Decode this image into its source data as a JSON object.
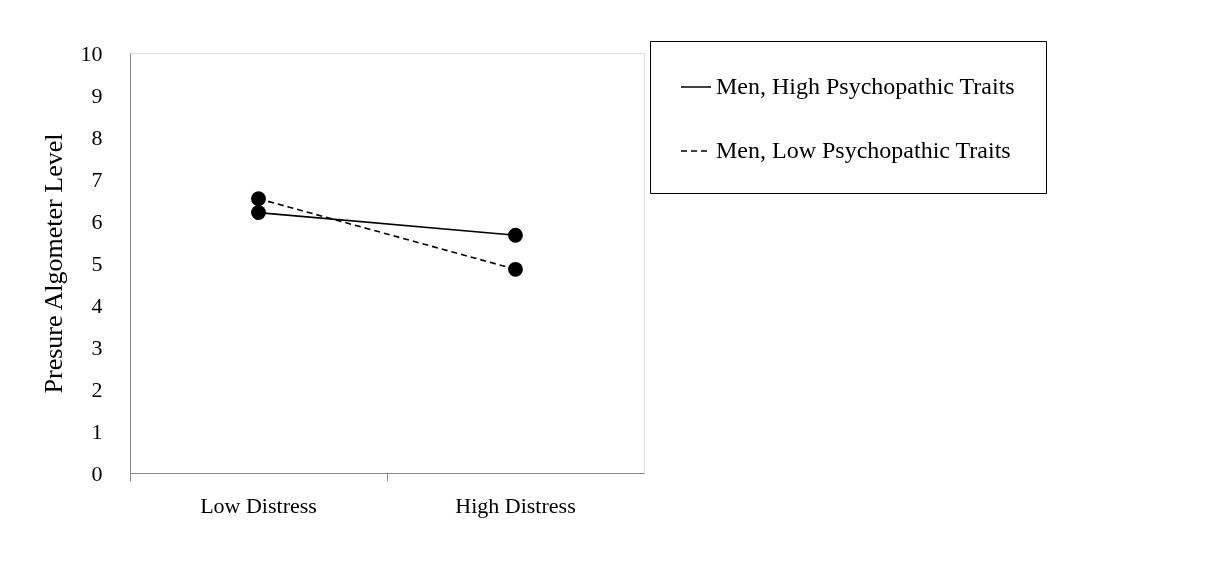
{
  "chart_data": {
    "type": "line",
    "ylabel": "Presure Algometer Level",
    "categories": [
      "Low Distress",
      "High Distress"
    ],
    "series": [
      {
        "name": "Men, High Psychopathic Traits",
        "color": "#000000",
        "values": [
          6.2,
          5.66
        ],
        "line_style": "solid"
      },
      {
        "name": "Men, Low Psychopathic Traits",
        "color": "#000000",
        "values": [
          6.53,
          4.85
        ],
        "line_style": "dashed"
      }
    ],
    "ylim": [
      0,
      10
    ],
    "yticks": [
      0,
      1,
      2,
      3,
      4,
      5,
      6,
      7,
      8,
      9,
      10
    ],
    "grid": false,
    "legend": "top right",
    "marker": "circle"
  }
}
